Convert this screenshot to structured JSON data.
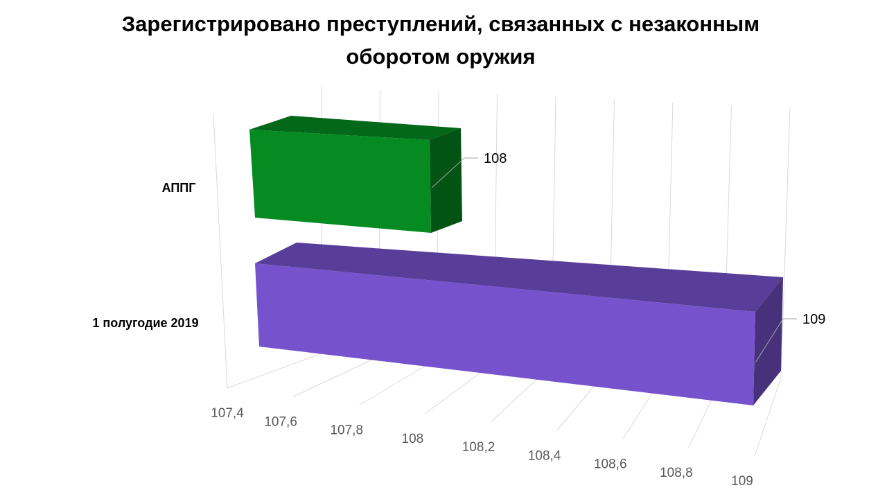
{
  "chart_data": {
    "type": "bar",
    "orientation": "horizontal",
    "style": "3d",
    "title_lines": [
      "Зарегистрировано преступлений, связанных с незаконным",
      "оборотом оружия"
    ],
    "categories": [
      "АППГ",
      "1 полугодие 2019"
    ],
    "values": [
      108,
      109
    ],
    "data_labels": [
      "108",
      "109"
    ],
    "colors": [
      "#058B22",
      "#7652CC"
    ],
    "xlim": [
      107.4,
      109
    ],
    "ticks": [
      "107,4",
      "107,6",
      "107,8",
      "108",
      "108,2",
      "108,4",
      "108,6",
      "108,8",
      "109"
    ],
    "grid": true,
    "legend": "none"
  }
}
